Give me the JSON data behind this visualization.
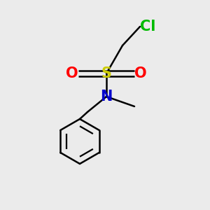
{
  "bg_color": "#ebebeb",
  "atom_colors": {
    "Cl": "#00bb00",
    "S": "#cccc00",
    "O": "#ff0000",
    "N": "#0000cc",
    "C": "#000000",
    "bond": "#000000"
  },
  "figsize": [
    3.0,
    3.0
  ],
  "dpi": 100,
  "lw": 1.8,
  "font_size": 15
}
